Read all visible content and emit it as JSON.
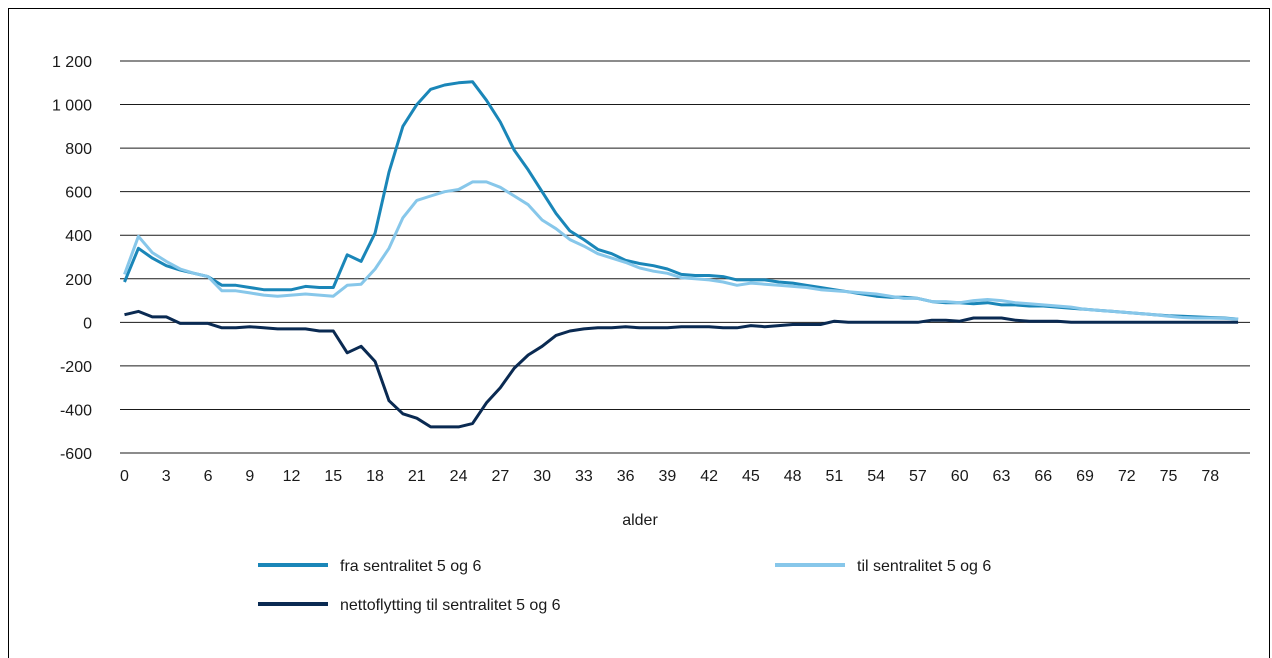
{
  "chart_data": {
    "type": "line",
    "title": "",
    "xlabel": "alder",
    "ylabel": "",
    "ylim": [
      -600,
      1200
    ],
    "yticks": [
      -600,
      -400,
      -200,
      0,
      200,
      400,
      600,
      800,
      1000,
      1200
    ],
    "ytick_labels": [
      "-600",
      "-400",
      "-200",
      "0",
      "200",
      "400",
      "600",
      "800",
      "1 000",
      "1 200"
    ],
    "xlim": [
      0,
      80
    ],
    "xticks": [
      0,
      3,
      6,
      9,
      12,
      15,
      18,
      21,
      24,
      27,
      30,
      33,
      36,
      39,
      42,
      45,
      48,
      51,
      54,
      57,
      60,
      63,
      66,
      69,
      72,
      75,
      78
    ],
    "xtick_labels": [
      "0",
      "3",
      "6",
      "9",
      "12",
      "15",
      "18",
      "21",
      "24",
      "27",
      "30",
      "33",
      "36",
      "39",
      "42",
      "45",
      "48",
      "51",
      "54",
      "57",
      "60",
      "63",
      "66",
      "69",
      "72",
      "75",
      "78"
    ],
    "grid": true,
    "legend_position": "bottom",
    "x": [
      0,
      1,
      2,
      3,
      4,
      5,
      6,
      7,
      8,
      9,
      10,
      11,
      12,
      13,
      14,
      15,
      16,
      17,
      18,
      19,
      20,
      21,
      22,
      23,
      24,
      25,
      26,
      27,
      28,
      29,
      30,
      31,
      32,
      33,
      34,
      35,
      36,
      37,
      38,
      39,
      40,
      41,
      42,
      43,
      44,
      45,
      46,
      47,
      48,
      49,
      50,
      51,
      52,
      53,
      54,
      55,
      56,
      57,
      58,
      59,
      60,
      61,
      62,
      63,
      64,
      65,
      66,
      67,
      68,
      69,
      70,
      71,
      72,
      73,
      74,
      75,
      76,
      77,
      78,
      79,
      80
    ],
    "series": [
      {
        "name": "fra sentralitet 5 og 6",
        "color": "#1a86b8",
        "values": [
          185,
          340,
          295,
          260,
          240,
          225,
          210,
          170,
          170,
          160,
          150,
          150,
          150,
          165,
          160,
          160,
          310,
          280,
          410,
          690,
          900,
          1000,
          1070,
          1090,
          1100,
          1105,
          1020,
          920,
          790,
          700,
          600,
          500,
          420,
          380,
          335,
          315,
          285,
          270,
          260,
          245,
          220,
          215,
          215,
          210,
          195,
          195,
          195,
          185,
          180,
          170,
          160,
          150,
          140,
          130,
          120,
          115,
          115,
          110,
          95,
          90,
          90,
          85,
          90,
          80,
          80,
          75,
          75,
          70,
          65,
          60,
          55,
          50,
          45,
          40,
          35,
          30,
          28,
          25,
          22,
          20,
          15
        ]
      },
      {
        "name": "til sentralitet 5 og 6",
        "color": "#87c7ea",
        "values": [
          220,
          395,
          320,
          280,
          245,
          225,
          210,
          145,
          145,
          135,
          125,
          120,
          125,
          130,
          125,
          120,
          170,
          175,
          245,
          340,
          480,
          560,
          580,
          600,
          610,
          645,
          645,
          620,
          580,
          540,
          470,
          430,
          380,
          350,
          315,
          295,
          275,
          250,
          235,
          225,
          205,
          200,
          195,
          185,
          170,
          180,
          175,
          170,
          165,
          160,
          150,
          145,
          140,
          135,
          130,
          120,
          110,
          110,
          95,
          95,
          90,
          100,
          105,
          100,
          90,
          85,
          80,
          75,
          70,
          60,
          55,
          50,
          45,
          40,
          35,
          28,
          22,
          20,
          20,
          18,
          15
        ]
      },
      {
        "name": "nettoflytting til sentralitet 5 og 6",
        "color": "#0a2a52",
        "values": [
          35,
          50,
          25,
          25,
          -5,
          -5,
          -5,
          -25,
          -25,
          -20,
          -25,
          -30,
          -30,
          -30,
          -40,
          -40,
          -140,
          -110,
          -180,
          -360,
          -420,
          -440,
          -480,
          -480,
          -480,
          -465,
          -370,
          -300,
          -210,
          -150,
          -110,
          -60,
          -40,
          -30,
          -25,
          -25,
          -20,
          -25,
          -25,
          -25,
          -20,
          -20,
          -20,
          -25,
          -25,
          -15,
          -20,
          -15,
          -10,
          -10,
          -10,
          5,
          0,
          0,
          0,
          0,
          0,
          0,
          10,
          10,
          5,
          20,
          20,
          20,
          10,
          5,
          5,
          5,
          0,
          0,
          0,
          0,
          0,
          0,
          0,
          0,
          0,
          0,
          0,
          0,
          0
        ]
      }
    ]
  },
  "legend": {
    "item1": "fra sentralitet 5 og 6",
    "item2": "til sentralitet 5 og 6",
    "item3": "nettoflytting til sentralitet 5 og 6"
  }
}
